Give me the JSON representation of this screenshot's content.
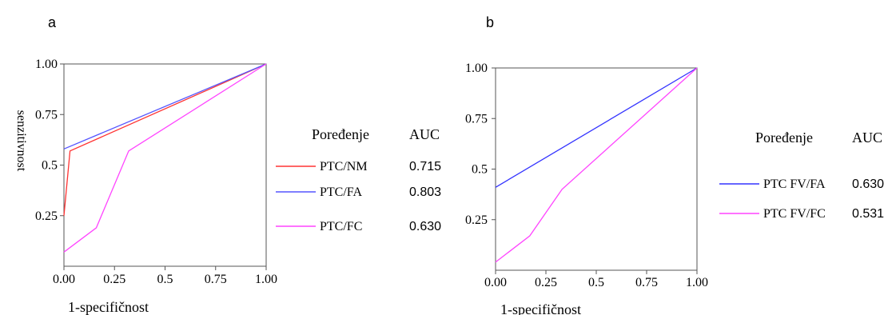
{
  "chart_data": [
    {
      "type": "line",
      "panel_label": "a",
      "xlabel": "1-specifičnost",
      "ylabel": "senzitivnost",
      "xlim": [
        0,
        1
      ],
      "ylim": [
        0,
        1
      ],
      "x_ticks": [
        "0.00",
        "0.25",
        "0.5",
        "0.75",
        "1.00"
      ],
      "y_ticks": [
        "0.25",
        "0.5",
        "0.75",
        "1.00"
      ],
      "legend": {
        "header_name": "Poređenje",
        "header_auc": "AUC",
        "position": "right"
      },
      "series": [
        {
          "name": "PTC/NM",
          "auc": "0.715",
          "color": "#ff3333",
          "points": [
            [
              0,
              0.25
            ],
            [
              0.03,
              0.57
            ],
            [
              1,
              1
            ]
          ]
        },
        {
          "name": "PTC/FA",
          "auc": "0.803",
          "color": "#5555ff",
          "points": [
            [
              0,
              0.58
            ],
            [
              1,
              1
            ]
          ]
        },
        {
          "name": "PTC/FC",
          "auc": "0.630",
          "color": "#ff44ff",
          "points": [
            [
              0,
              0.07
            ],
            [
              0.16,
              0.19
            ],
            [
              0.32,
              0.57
            ],
            [
              1,
              1
            ]
          ]
        }
      ]
    },
    {
      "type": "line",
      "panel_label": "b",
      "xlabel": "1-specifičnost",
      "ylabel": "",
      "xlim": [
        0,
        1
      ],
      "ylim": [
        0,
        1
      ],
      "x_ticks": [
        "0.00",
        "0.25",
        "0.5",
        "0.75",
        "1.00"
      ],
      "y_ticks": [
        "0.25",
        "0.5",
        "0.75",
        "1.00"
      ],
      "legend": {
        "header_name": "Poređenje",
        "header_auc": "AUC",
        "position": "right"
      },
      "series": [
        {
          "name": "PTC FV/FA",
          "auc": "0.630",
          "color": "#3333ff",
          "points": [
            [
              0,
              0.41
            ],
            [
              1,
              1
            ]
          ]
        },
        {
          "name": "PTC FV/FC",
          "auc": "0.531",
          "color": "#ff44ff",
          "points": [
            [
              0,
              0.04
            ],
            [
              0.17,
              0.17
            ],
            [
              0.33,
              0.4
            ],
            [
              1,
              1
            ]
          ]
        }
      ]
    }
  ]
}
